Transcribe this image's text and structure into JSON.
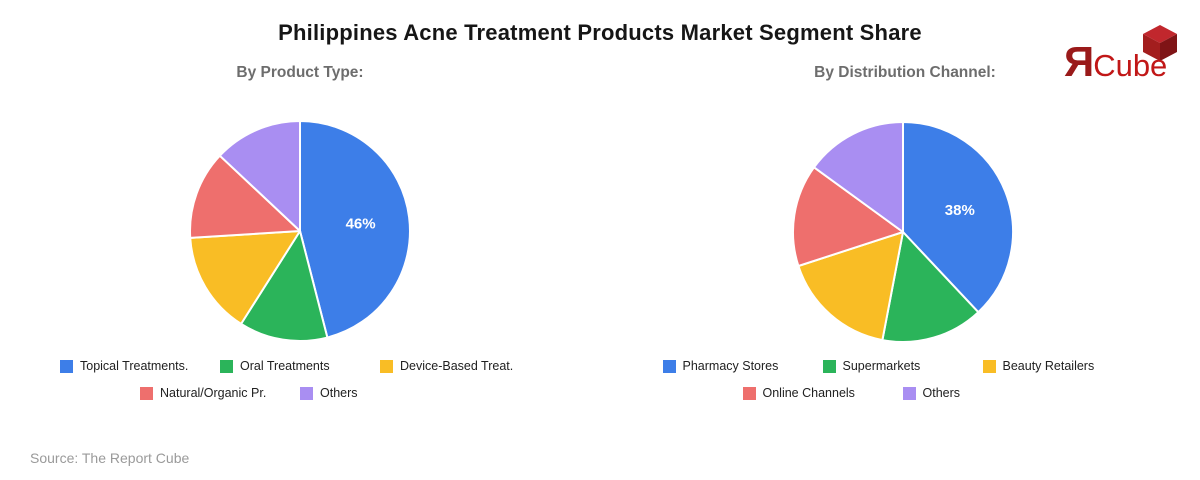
{
  "header": {
    "title": "Philippines Acne Treatment Products Market Segment Share"
  },
  "logo": {
    "r_letter": "Я",
    "brand": "Cube",
    "icon": "red-3d-cube-icon",
    "colors": {
      "r_letter": "#9A1A1A",
      "brand": "#C11717",
      "cube_top": "#C1272D",
      "cube_left": "#A31E1E",
      "cube_right": "#7F1416"
    }
  },
  "footer": {
    "source": "Source: The Report Cube"
  },
  "palette": {
    "blue": "#3D7EE8",
    "green": "#2BB45A",
    "yellow": "#F9BD25",
    "red": "#EE6F6D",
    "purple": "#A98EF2"
  },
  "chart_data": [
    {
      "type": "pie",
      "title": "By Product Type:",
      "start_angle_deg": 0,
      "direction": "clockwise",
      "legend_position": "bottom",
      "slices": [
        {
          "label": "Topical Treatments.",
          "value": 46,
          "color": "#3D7EE8",
          "data_label": "46%"
        },
        {
          "label": "Oral Treatments",
          "value": 13,
          "color": "#2BB45A",
          "data_label": null
        },
        {
          "label": "Device-Based Treat.",
          "value": 15,
          "color": "#F9BD25",
          "data_label": null
        },
        {
          "label": "Natural/Organic Pr.",
          "value": 13,
          "color": "#EE6F6D",
          "data_label": null
        },
        {
          "label": "Others",
          "value": 13,
          "color": "#A98EF2",
          "data_label": null
        }
      ]
    },
    {
      "type": "pie",
      "title": "By Distribution Channel:",
      "start_angle_deg": 0,
      "direction": "clockwise",
      "legend_position": "bottom",
      "slices": [
        {
          "label": "Pharmacy Stores",
          "value": 38,
          "color": "#3D7EE8",
          "data_label": "38%"
        },
        {
          "label": "Supermarkets",
          "value": 15,
          "color": "#2BB45A",
          "data_label": null
        },
        {
          "label": "Beauty Retailers",
          "value": 17,
          "color": "#F9BD25",
          "data_label": null
        },
        {
          "label": "Online Channels",
          "value": 15,
          "color": "#EE6F6D",
          "data_label": null
        },
        {
          "label": "Others",
          "value": 15,
          "color": "#A98EF2",
          "data_label": null
        }
      ]
    }
  ]
}
